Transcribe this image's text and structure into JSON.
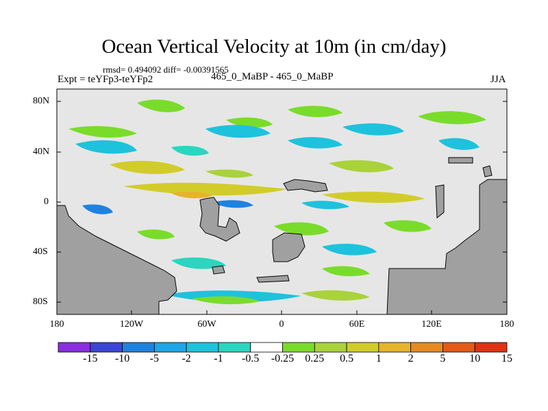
{
  "title": "Ocean Vertical Velocity at 10m (in cm/day)",
  "stats": "rmsd= 0.494092 diff= -0.00391565",
  "experiment": "Expt = teYFp3-teYFp2",
  "cases": "465_0_MaBP - 465_0_MaBP",
  "season": "JJA",
  "colors": {
    "land": "#a0a0a0",
    "near_zero": "#e6e6e6"
  },
  "axes": {
    "x_ticks": [
      "180",
      "120W",
      "60W",
      "0",
      "60E",
      "120E",
      "180"
    ],
    "y_ticks": [
      "80N",
      "40N",
      "0",
      "40S",
      "80S"
    ]
  },
  "colorbar": {
    "labels": [
      "-15",
      "-10",
      "-5",
      "-2",
      "-1",
      "-0.5",
      "-0.25",
      "0.25",
      "0.5",
      "1",
      "2",
      "5",
      "10",
      "15"
    ],
    "colors": [
      "#8a2ee0",
      "#3c46d6",
      "#1e82e0",
      "#1ea6e6",
      "#1ec2dc",
      "#2ad6c0",
      "#ffffff",
      "#7adc2a",
      "#aad23a",
      "#d2cc2a",
      "#e6b42a",
      "#e68a22",
      "#e45a18",
      "#e03214"
    ]
  }
}
